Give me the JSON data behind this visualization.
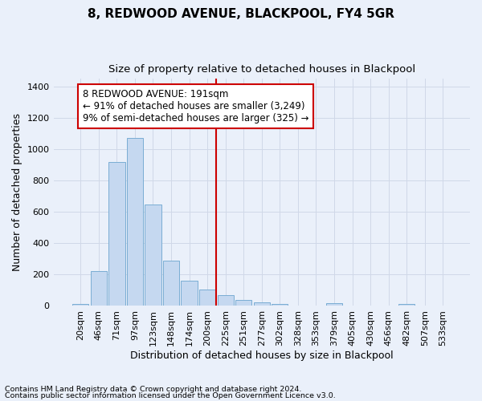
{
  "title": "8, REDWOOD AVENUE, BLACKPOOL, FY4 5GR",
  "subtitle": "Size of property relative to detached houses in Blackpool",
  "xlabel": "Distribution of detached houses by size in Blackpool",
  "ylabel": "Number of detached properties",
  "footnote1": "Contains HM Land Registry data © Crown copyright and database right 2024.",
  "footnote2": "Contains public sector information licensed under the Open Government Licence v3.0.",
  "categories": [
    "20sqm",
    "46sqm",
    "71sqm",
    "97sqm",
    "123sqm",
    "148sqm",
    "174sqm",
    "200sqm",
    "225sqm",
    "251sqm",
    "277sqm",
    "302sqm",
    "328sqm",
    "353sqm",
    "379sqm",
    "405sqm",
    "430sqm",
    "456sqm",
    "482sqm",
    "507sqm",
    "533sqm"
  ],
  "values": [
    13,
    225,
    920,
    1075,
    650,
    290,
    160,
    105,
    68,
    40,
    22,
    15,
    0,
    0,
    17,
    0,
    0,
    0,
    13,
    0,
    0
  ],
  "bar_color": "#c5d8f0",
  "bar_edge_color": "#7aadd4",
  "grid_color": "#d0d8e8",
  "background_color": "#eaf0fa",
  "vline_color": "#cc0000",
  "vline_x": 7.5,
  "annotation_text": "8 REDWOOD AVENUE: 191sqm\n← 91% of detached houses are smaller (3,249)\n9% of semi-detached houses are larger (325) →",
  "annotation_box_facecolor": "#ffffff",
  "annotation_box_edgecolor": "#cc0000",
  "ylim": [
    0,
    1450
  ],
  "yticks": [
    0,
    200,
    400,
    600,
    800,
    1000,
    1200,
    1400
  ],
  "title_fontsize": 11,
  "subtitle_fontsize": 9.5,
  "tick_fontsize": 8,
  "ylabel_fontsize": 9,
  "xlabel_fontsize": 9,
  "annot_fontsize": 8.5,
  "footnote_fontsize": 6.8
}
